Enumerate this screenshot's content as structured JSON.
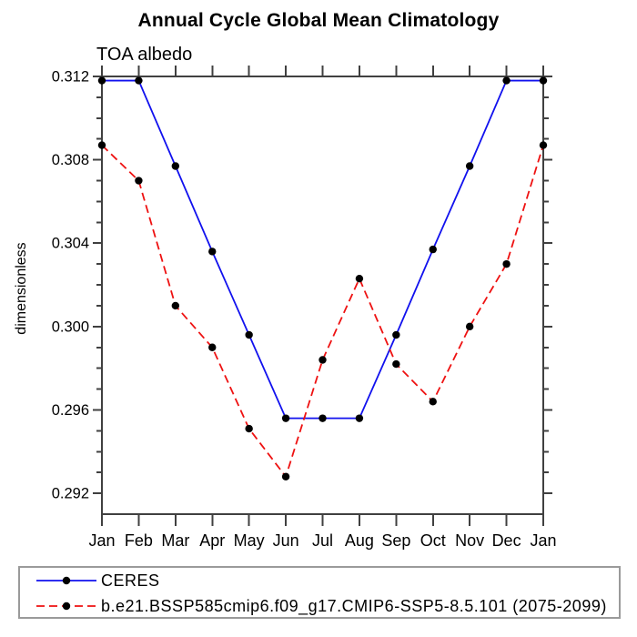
{
  "title": "Annual Cycle Global Mean Climatology",
  "subtitle": "TOA albedo",
  "chart_data": {
    "type": "line",
    "title": "Annual Cycle Global Mean Climatology",
    "subtitle": "TOA albedo",
    "xlabel": "",
    "ylabel": "dimensionless",
    "categories": [
      "Jan",
      "Feb",
      "Mar",
      "Apr",
      "May",
      "Jun",
      "Jul",
      "Aug",
      "Sep",
      "Oct",
      "Nov",
      "Dec",
      "Jan"
    ],
    "ylim": [
      0.291,
      0.312
    ],
    "yticks_major": {
      "values": [
        0.312,
        0.308,
        0.304,
        0.3,
        0.296,
        0.292
      ],
      "labels": [
        "0.312",
        "0.308",
        "0.304",
        "0.300",
        "0.296",
        "0.292"
      ]
    },
    "ytick_minor_step": 0.001,
    "grid": false,
    "legend_position": "bottom-left-box",
    "axis_color": "#404040",
    "marker": "filled-circle",
    "marker_color": "#000000",
    "series": [
      {
        "name": "CERES",
        "color": "#1111ee",
        "line_style": "solid",
        "values": [
          0.3118,
          0.3118,
          0.3077,
          0.3036,
          0.2996,
          0.2956,
          0.2956,
          0.2956,
          0.2996,
          0.3037,
          0.3077,
          0.3118,
          0.3118
        ]
      },
      {
        "name": "b.e21.BSSP585cmip6.f09_g17.CMIP6-SSP5-8.5.101 (2075-2099)",
        "color": "#ee1111",
        "line_style": "dashed",
        "values": [
          0.3087,
          0.307,
          0.301,
          0.299,
          0.2951,
          0.2928,
          0.2984,
          0.3023,
          0.2982,
          0.2964,
          0.3,
          0.303,
          0.3087
        ]
      }
    ]
  }
}
